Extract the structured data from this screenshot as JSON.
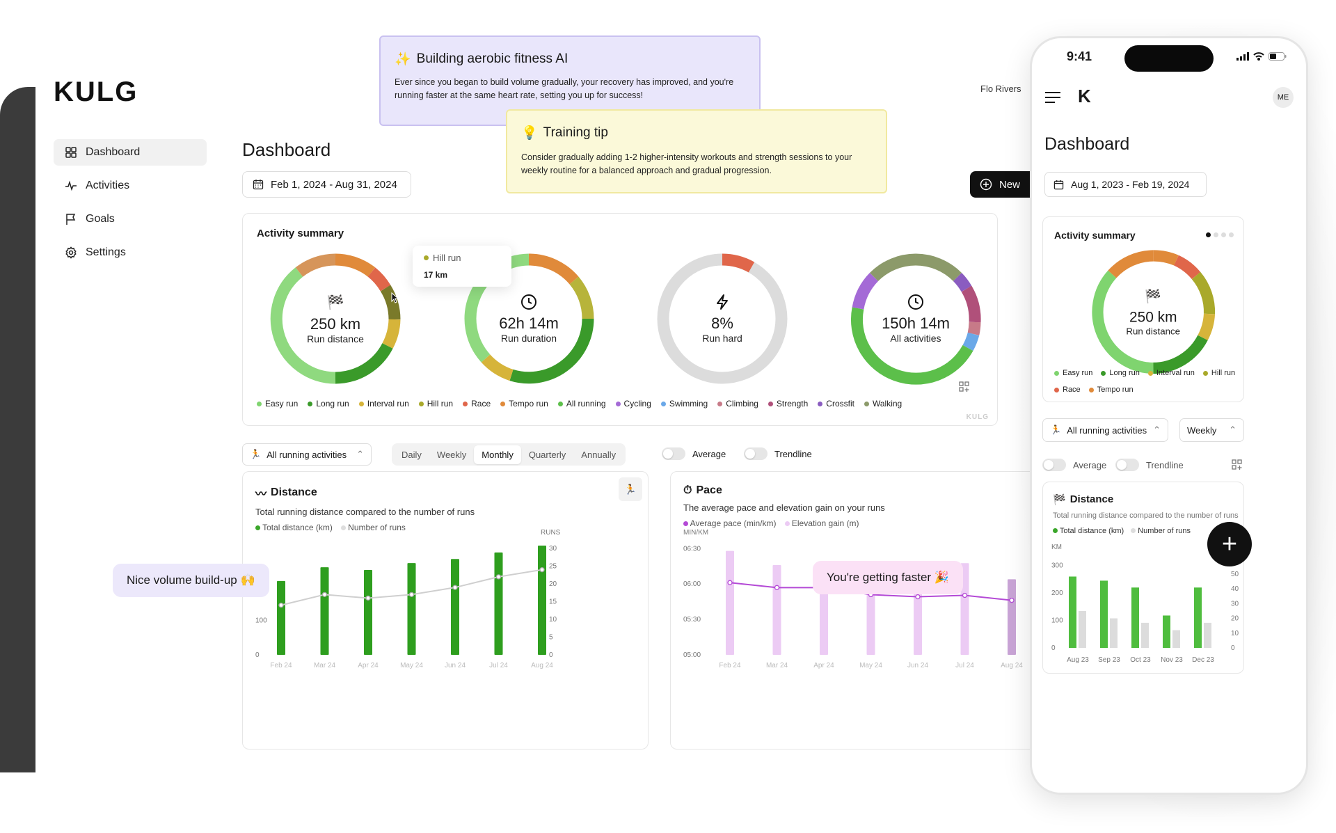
{
  "app": {
    "logo": "KULG",
    "user_name": "Flo Rivers",
    "watermark": "KULG"
  },
  "nav": [
    {
      "label": "Dashboard",
      "icon": "grid-icon",
      "active": true
    },
    {
      "label": "Activities",
      "icon": "pulse-icon",
      "active": false
    },
    {
      "label": "Goals",
      "icon": "flag-icon",
      "active": false
    },
    {
      "label": "Settings",
      "icon": "gear-icon",
      "active": false
    }
  ],
  "header": {
    "title": "Dashboard",
    "date_range": "Feb 1, 2024 - Aug 31, 2024",
    "new_button": "New"
  },
  "ai_card": {
    "title": "Building aerobic fitness AI",
    "body": "Ever since you began to build volume gradually, your recovery has improved, and you're running faster at the same heart rate, setting you up for success!"
  },
  "tip_card": {
    "title": "Training tip",
    "body": "Consider gradually adding 1-2 higher-intensity workouts and strength sessions to your weekly routine for a balanced approach and gradual progression."
  },
  "activity_summary": {
    "title": "Activity summary",
    "donuts": [
      {
        "value": "250 km",
        "label": "Run distance",
        "icon": "checkered-flag-icon"
      },
      {
        "value": "62h 14m",
        "label": "Run duration",
        "icon": "clock-icon"
      },
      {
        "value": "8%",
        "label": "Run hard",
        "icon": "lightning-icon"
      },
      {
        "value": "150h 14m",
        "label": "All activities",
        "icon": "clock-icon"
      }
    ],
    "tooltip": {
      "label": "Hill run",
      "value": "17 km"
    },
    "legend": [
      {
        "label": "Easy run",
        "color": "#7fd46f"
      },
      {
        "label": "Long run",
        "color": "#3a9a2a"
      },
      {
        "label": "Interval run",
        "color": "#d6b43a"
      },
      {
        "label": "Hill run",
        "color": "#a9a92a"
      },
      {
        "label": "Race",
        "color": "#e0664a"
      },
      {
        "label": "Tempo run",
        "color": "#e08a3a"
      },
      {
        "label": "All running",
        "color": "#5cbf4a"
      },
      {
        "label": "Cycling",
        "color": "#a46ad6"
      },
      {
        "label": "Swimming",
        "color": "#6aa8e8"
      },
      {
        "label": "Climbing",
        "color": "#c77a88"
      },
      {
        "label": "Strength",
        "color": "#b0507a"
      },
      {
        "label": "Crossfit",
        "color": "#8a5cc0"
      },
      {
        "label": "Walking",
        "color": "#8c9a6a"
      }
    ]
  },
  "filters": {
    "activity_select": "All running activities",
    "periods": [
      "Daily",
      "Weekly",
      "Monthly",
      "Quarterly",
      "Annually"
    ],
    "active_period": "Monthly",
    "toggles": [
      "Average",
      "Trendline"
    ]
  },
  "distance_chart": {
    "title": "Distance",
    "subtitle": "Total running distance compared to the number of runs",
    "legend": [
      "Total distance (km)",
      "Number of runs"
    ],
    "right_axis_label": "RUNS",
    "bubble": "Nice volume build-up 🙌"
  },
  "pace_chart": {
    "title": "Pace",
    "subtitle": "The average pace and elevation gain on your runs",
    "legend": [
      "Average pace (min/km)",
      "Elevation gain (m)"
    ],
    "left_axis_label": "MIN/KM",
    "bubble": "You're getting faster 🎉"
  },
  "chart_data": [
    {
      "type": "bar",
      "title": "Distance",
      "categories": [
        "Feb 24",
        "Mar 24",
        "Apr 24",
        "May 24",
        "Jun 24",
        "Jul 24",
        "Aug 24"
      ],
      "series": [
        {
          "name": "Total distance (km)",
          "values": [
            215,
            255,
            247,
            267,
            279,
            298,
            318
          ],
          "type": "bar"
        },
        {
          "name": "Number of runs",
          "values": [
            14,
            17,
            16,
            17,
            19,
            22,
            24
          ],
          "type": "line"
        }
      ],
      "ylim": [
        0,
        320
      ],
      "y_ticks": [
        0,
        100,
        200
      ],
      "y2lim": [
        0,
        31
      ],
      "y2_ticks": [
        0,
        5,
        10,
        15,
        20,
        25,
        30
      ],
      "ylabel": "",
      "y2label": "RUNS"
    },
    {
      "type": "bar",
      "title": "Pace",
      "categories": [
        "Feb 24",
        "Mar 24",
        "Apr 24",
        "May 24",
        "Jun 24",
        "Jul 24",
        "Aug 24"
      ],
      "series": [
        {
          "name": "Average pace (min/km)",
          "values": [
            6.02,
            5.95,
            5.95,
            5.85,
            5.82,
            5.84,
            5.77
          ],
          "type": "line"
        },
        {
          "name": "Elevation gain (m)",
          "values": [
            110,
            95,
            80,
            68,
            75,
            97,
            80
          ],
          "type": "bar"
        }
      ],
      "ylim": [
        5.0,
        6.7
      ],
      "y_ticks": [
        "05:00",
        "05:30",
        "06:00",
        "06:30"
      ],
      "ylabel": "MIN/KM"
    },
    {
      "type": "bar",
      "title": "Distance",
      "categories": [
        "Aug 23",
        "Sep 23",
        "Oct 23",
        "Nov 23",
        "Dec 23"
      ],
      "series": [
        {
          "name": "Total distance (km)",
          "values": [
            260,
            245,
            220,
            118,
            220
          ]
        },
        {
          "name": "Number of runs",
          "values": [
            25,
            20,
            17,
            12,
            17
          ]
        }
      ],
      "ylim": [
        0,
        350
      ],
      "y_ticks": [
        0,
        100,
        200,
        300
      ],
      "y2lim": [
        0,
        65
      ],
      "y2_ticks": [
        0,
        10,
        20,
        30,
        40,
        50,
        60
      ],
      "ylabel": "KM",
      "y2label": "RUNS"
    }
  ],
  "phone": {
    "time": "9:41",
    "avatar": "ME",
    "title": "Dashboard",
    "date_range": "Aug 1, 2023 - Feb 19, 2024",
    "summary_title": "Activity summary",
    "donut": {
      "value": "250 km",
      "label": "Run distance"
    },
    "legend": [
      "Easy run",
      "Long run",
      "Interval run",
      "Hill run",
      "Race",
      "Tempo run"
    ],
    "activity_select": "All running activities",
    "period_select": "Weekly",
    "toggles": [
      "Average",
      "Trendline"
    ],
    "chart_title": "Distance",
    "chart_subtitle": "Total running distance compared to the number of runs",
    "chart_legend": [
      "Total distance (km)",
      "Number of runs"
    ],
    "left_axis_label": "KM",
    "right_axis_label": "RUNS"
  }
}
